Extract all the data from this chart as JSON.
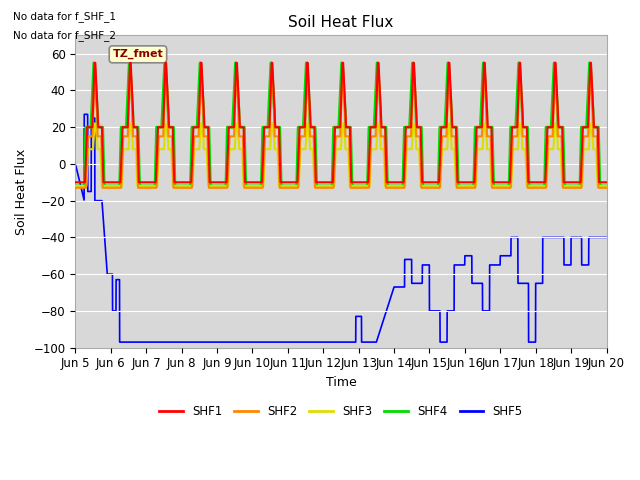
{
  "title": "Soil Heat Flux",
  "ylabel": "Soil Heat Flux",
  "xlabel": "Time",
  "ylim": [
    -100,
    70
  ],
  "xlim_days": 15,
  "note1": "No data for f_SHF_1",
  "note2": "No data for f_SHF_2",
  "tz_label": "TZ_fmet",
  "bg_color": "#d8d8d8",
  "legend": [
    "SHF1",
    "SHF2",
    "SHF3",
    "SHF4",
    "SHF5"
  ],
  "colors": [
    "#ff0000",
    "#ff8800",
    "#dddd00",
    "#00dd00",
    "#0000ff"
  ],
  "x_tick_labels": [
    "Jun 5",
    "Jun 6",
    "Jun 7",
    "Jun 8",
    "Jun 9",
    "Jun 10",
    "Jun 11",
    "Jun 12",
    "Jun 13",
    "Jun 14",
    "Jun 15",
    "Jun 16",
    "Jun 17",
    "Jun 18",
    "Jun 19",
    "Jun 20"
  ],
  "yticks": [
    -100,
    -80,
    -60,
    -40,
    -20,
    0,
    20,
    40,
    60
  ]
}
